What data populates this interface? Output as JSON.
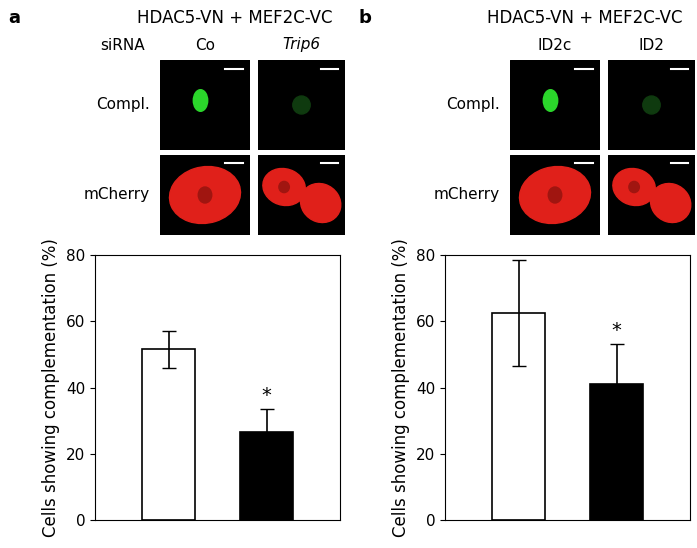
{
  "chart_data": [
    {
      "type": "bar",
      "panel": "a",
      "title": "HDAC5-VN + MEF2C-VC",
      "group_label": "siRNA",
      "row_labels": [
        "Compl.",
        "mCherry"
      ],
      "categories": [
        "Co",
        "Trip6"
      ],
      "values": [
        51.5,
        26.5
      ],
      "errors": [
        5.5,
        7
      ],
      "colors": [
        "#ffffff",
        "#000000"
      ],
      "annotations": [
        {
          "category": "Trip6",
          "text": "*"
        }
      ],
      "ylabel": "Cells showing complementation (%)",
      "ylim": [
        0,
        80
      ],
      "yticks": [
        0,
        20,
        40,
        60,
        80
      ]
    },
    {
      "type": "bar",
      "panel": "b",
      "title": "HDAC5-VN + MEF2C-VC",
      "row_labels": [
        "Compl.",
        "mCherry"
      ],
      "categories": [
        "ID2c",
        "ID2"
      ],
      "values": [
        62.5,
        41
      ],
      "errors": [
        16,
        12
      ],
      "colors": [
        "#ffffff",
        "#000000"
      ],
      "annotations": [
        {
          "category": "ID2",
          "text": "*"
        }
      ],
      "ylabel": "Cells showing complementation (%)",
      "ylim": [
        0,
        80
      ],
      "yticks": [
        0,
        20,
        40,
        60,
        80
      ]
    }
  ]
}
